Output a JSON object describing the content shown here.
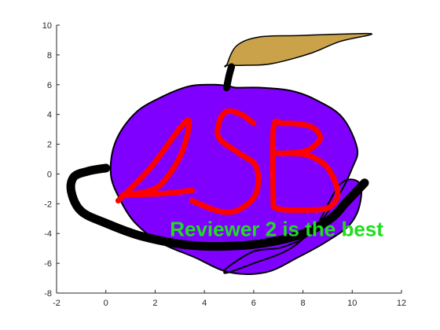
{
  "colors": {
    "apple_fill": "#7f00ff",
    "leaf_fill": "#c9a24a",
    "stroke": "#000000",
    "letters": "#ff0000",
    "annotation": "#1fdd1f",
    "axis": "#262626"
  },
  "chart_data": {
    "type": "line",
    "title": "",
    "xlabel": "",
    "ylabel": "",
    "xlim": [
      -2,
      12
    ],
    "ylim": [
      -8,
      10
    ],
    "xticks": [
      -2,
      0,
      2,
      4,
      6,
      8,
      10,
      12
    ],
    "yticks": [
      -8,
      -6,
      -4,
      -2,
      0,
      2,
      4,
      6,
      8,
      10
    ],
    "grid": false,
    "legend": "none",
    "annotation": {
      "text": "Reviewer 2 is the best",
      "x": 2.6,
      "y": -3.7
    },
    "series": [
      {
        "kind": "filled",
        "role": "apple",
        "x": [
          5.0,
          4.4,
          3.4,
          2.3,
          1.2,
          0.4,
          0.2,
          0.6,
          1.2,
          2.2,
          3.6,
          5.0,
          6.5,
          7.8,
          9.0,
          9.9,
          10.3,
          10.3,
          9.5,
          8.4,
          7.2,
          6.0,
          5.0,
          4.8,
          5.0,
          6.0,
          7.5,
          8.7,
          9.5,
          10.0,
          10.2,
          9.6,
          8.5,
          7.5,
          6.3,
          5.3
        ],
        "y": [
          5.9,
          6.0,
          5.9,
          5.2,
          4.1,
          2.2,
          0.0,
          -1.8,
          -3.3,
          -4.6,
          -5.6,
          -6.6,
          -6.6,
          -5.6,
          -4.5,
          -3.4,
          -2.1,
          -0.6,
          -0.7,
          -3.8,
          -4.9,
          -5.2,
          -6.2,
          -6.6,
          -6.6,
          -6.0,
          -5.0,
          -3.2,
          -1.3,
          0.4,
          1.7,
          3.8,
          5.0,
          5.6,
          5.8,
          5.8
        ]
      },
      {
        "kind": "filled",
        "role": "leaf",
        "x": [
          4.9,
          5.3,
          6.2,
          7.8,
          9.6,
          10.8,
          9.5,
          8.3,
          6.7,
          5.6,
          4.9
        ],
        "y": [
          7.3,
          8.6,
          9.2,
          9.3,
          9.4,
          9.4,
          8.9,
          8.1,
          7.4,
          7.3,
          7.3
        ],
        "stroke_width": 1.5
      },
      {
        "kind": "line",
        "role": "stem",
        "x": [
          4.9,
          5.0,
          5.1
        ],
        "y": [
          5.8,
          6.6,
          7.2
        ],
        "stroke_width": 9
      },
      {
        "kind": "line",
        "role": "letters",
        "x": [
          0.5,
          1.8,
          3.3,
          3.1,
          2.3,
          1.6,
          0.7,
          2.4,
          3.5
        ],
        "y": [
          -1.8,
          0.4,
          3.6,
          1.5,
          -0.6,
          -1.2,
          -1.4,
          -1.3,
          -1.1
        ],
        "stroke_width": 7
      },
      {
        "kind": "line",
        "role": "letters",
        "x": [
          6.0,
          5.5,
          4.9,
          4.6,
          4.6,
          5.4,
          6.1,
          6.1,
          5.4,
          4.6,
          3.5
        ],
        "y": [
          3.4,
          4.0,
          4.2,
          3.5,
          2.4,
          1.4,
          0.5,
          -1.3,
          -2.4,
          -2.5,
          -1.8
        ],
        "stroke_width": 7
      },
      {
        "kind": "line",
        "role": "letters",
        "x": [
          6.8,
          6.8,
          7.2,
          8.3,
          8.7,
          8.2,
          7.4,
          6.8,
          8.1,
          8.9,
          9.3,
          9.4,
          9.1,
          8.6,
          7.2,
          6.8
        ],
        "y": [
          -2.2,
          3.0,
          3.4,
          3.2,
          2.4,
          1.6,
          1.4,
          1.4,
          1.3,
          0.6,
          -0.5,
          -1.5,
          -2.2,
          -2.4,
          -2.4,
          -2.2
        ],
        "stroke_width": 7
      },
      {
        "kind": "line",
        "role": "ring",
        "x": [
          0.0,
          -0.7,
          -1.3,
          -1.4,
          -1.0,
          0.0,
          1.5,
          3.5,
          5.6,
          7.2,
          8.3,
          9.2,
          9.7,
          10.1,
          10.5
        ],
        "y": [
          0.4,
          0.2,
          -0.2,
          -1.2,
          -2.5,
          -3.3,
          -4.2,
          -4.8,
          -4.8,
          -4.4,
          -3.8,
          -2.9,
          -2.0,
          -1.3,
          -0.6
        ],
        "stroke_width": 11
      }
    ]
  }
}
